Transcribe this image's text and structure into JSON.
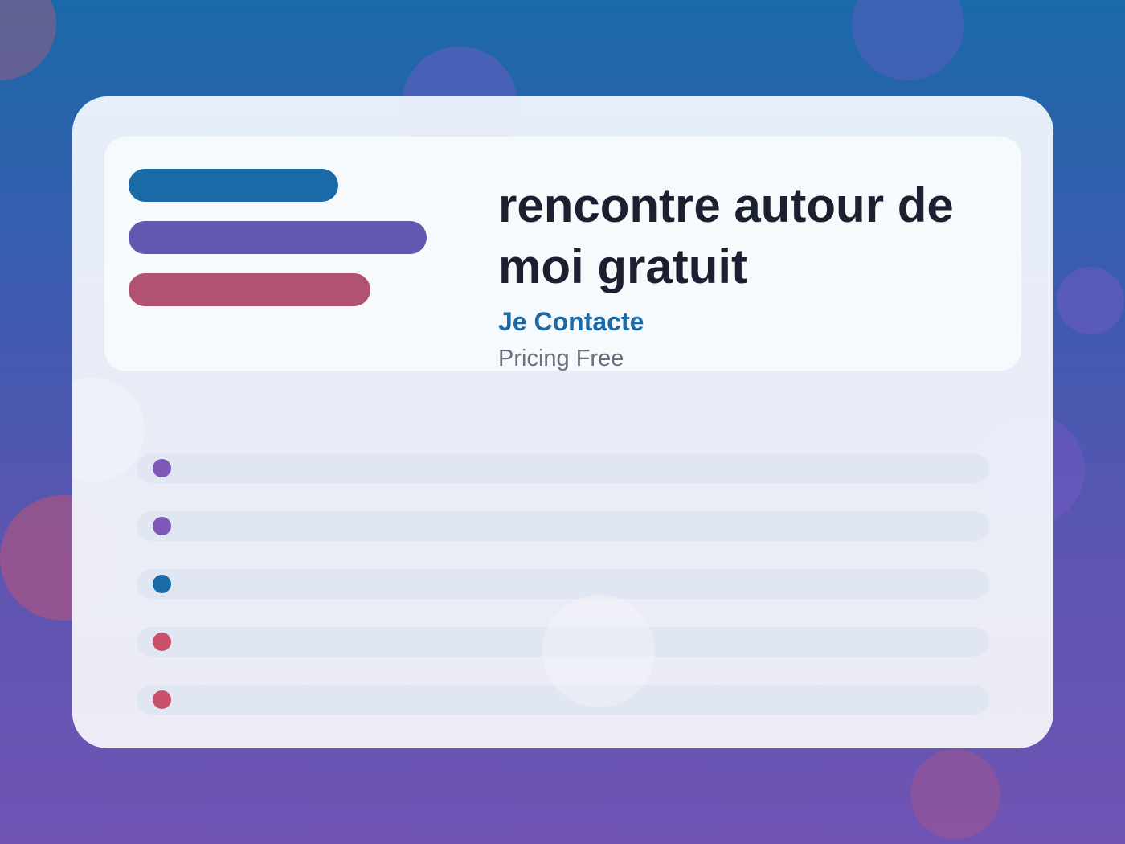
{
  "colors": {
    "brand_blue": "#1a6aa8",
    "brand_purple": "#6258b2",
    "brand_rose": "#b05270",
    "dot_purple": "#7e58b8",
    "dot_blue": "#1a6aa8",
    "dot_red": "#c85068"
  },
  "hero": {
    "title": "rencontre autour de moi gratuit",
    "cta_label": "Je Contacte",
    "price_text": "Pricing Free"
  },
  "list": {
    "items": [
      {
        "dot_color": "#7e58b8"
      },
      {
        "dot_color": "#7e58b8"
      },
      {
        "dot_color": "#1a6aa8"
      },
      {
        "dot_color": "#c85068"
      },
      {
        "dot_color": "#c85068"
      }
    ]
  }
}
